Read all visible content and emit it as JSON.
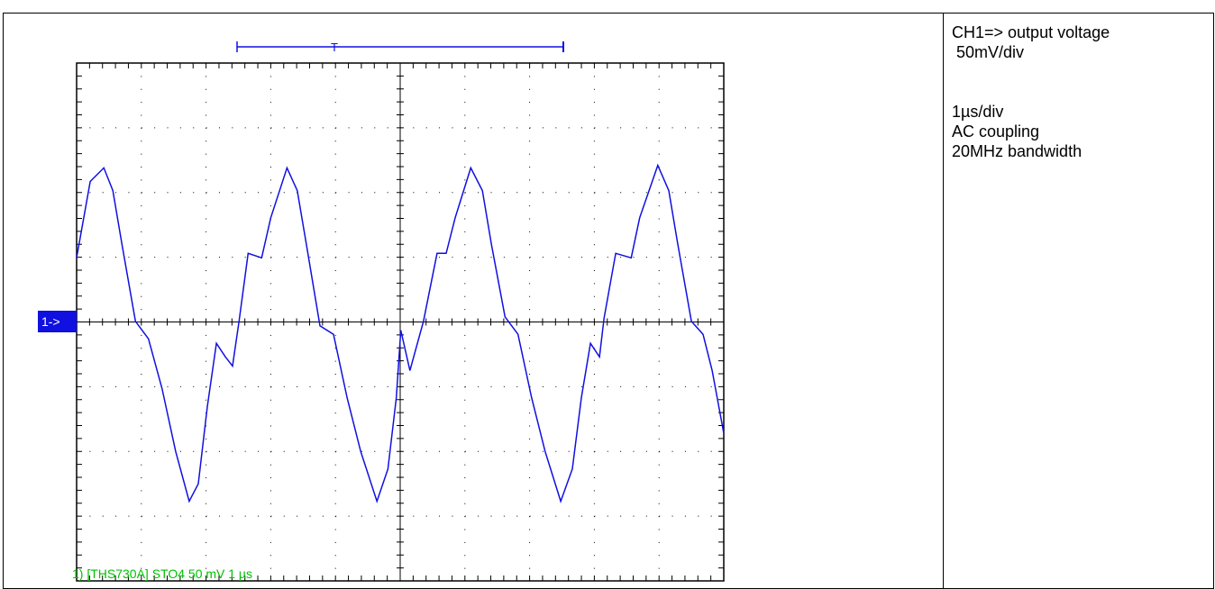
{
  "chart_data": {
    "type": "line",
    "channel_marker": "1->",
    "trigger_label": "T",
    "status": "1) [THS730A] STO4 50 mV 1 µs",
    "color": "#1010e0",
    "xlim": [
      0,
      10
    ],
    "ylim": [
      -4,
      4
    ],
    "x": [
      0,
      0.21,
      0.42,
      0.56,
      0.7,
      0.91,
      1.11,
      1.32,
      1.53,
      1.74,
      1.88,
      2.02,
      2.16,
      2.3,
      2.41,
      2.51,
      2.65,
      2.86,
      3.0,
      3.25,
      3.41,
      3.55,
      3.76,
      3.97,
      4.18,
      4.39,
      4.64,
      4.81,
      4.94,
      5.01,
      5.15,
      5.36,
      5.57,
      5.71,
      5.85,
      6.09,
      6.27,
      6.41,
      6.62,
      6.82,
      7.03,
      7.24,
      7.48,
      7.66,
      7.8,
      7.94,
      8.08,
      8.15,
      8.33,
      8.57,
      8.7,
      8.98,
      9.15,
      9.29,
      9.5,
      9.68,
      9.82,
      10.0
    ],
    "values": [
      0.99,
      2.17,
      2.38,
      2.03,
      1.2,
      0.01,
      -0.26,
      -1.03,
      -2.0,
      -2.77,
      -2.5,
      -1.31,
      -0.33,
      -0.54,
      -0.68,
      0.01,
      1.06,
      0.99,
      1.61,
      2.38,
      2.03,
      1.2,
      -0.06,
      -0.19,
      -1.17,
      -2.0,
      -2.77,
      -2.27,
      -1.17,
      -0.13,
      -0.75,
      0.01,
      1.06,
      1.06,
      1.61,
      2.38,
      2.03,
      1.2,
      0.08,
      -0.19,
      -1.17,
      -2.0,
      -2.77,
      -2.27,
      -1.17,
      -0.33,
      -0.54,
      0.06,
      1.06,
      0.99,
      1.61,
      2.42,
      2.03,
      1.2,
      0.01,
      -0.19,
      -0.75,
      -1.72
    ]
  },
  "notes": [
    "CH1=> output voltage",
    " 50mV/div",
    "1µs/div",
    "AC coupling",
    "20MHz bandwidth"
  ]
}
